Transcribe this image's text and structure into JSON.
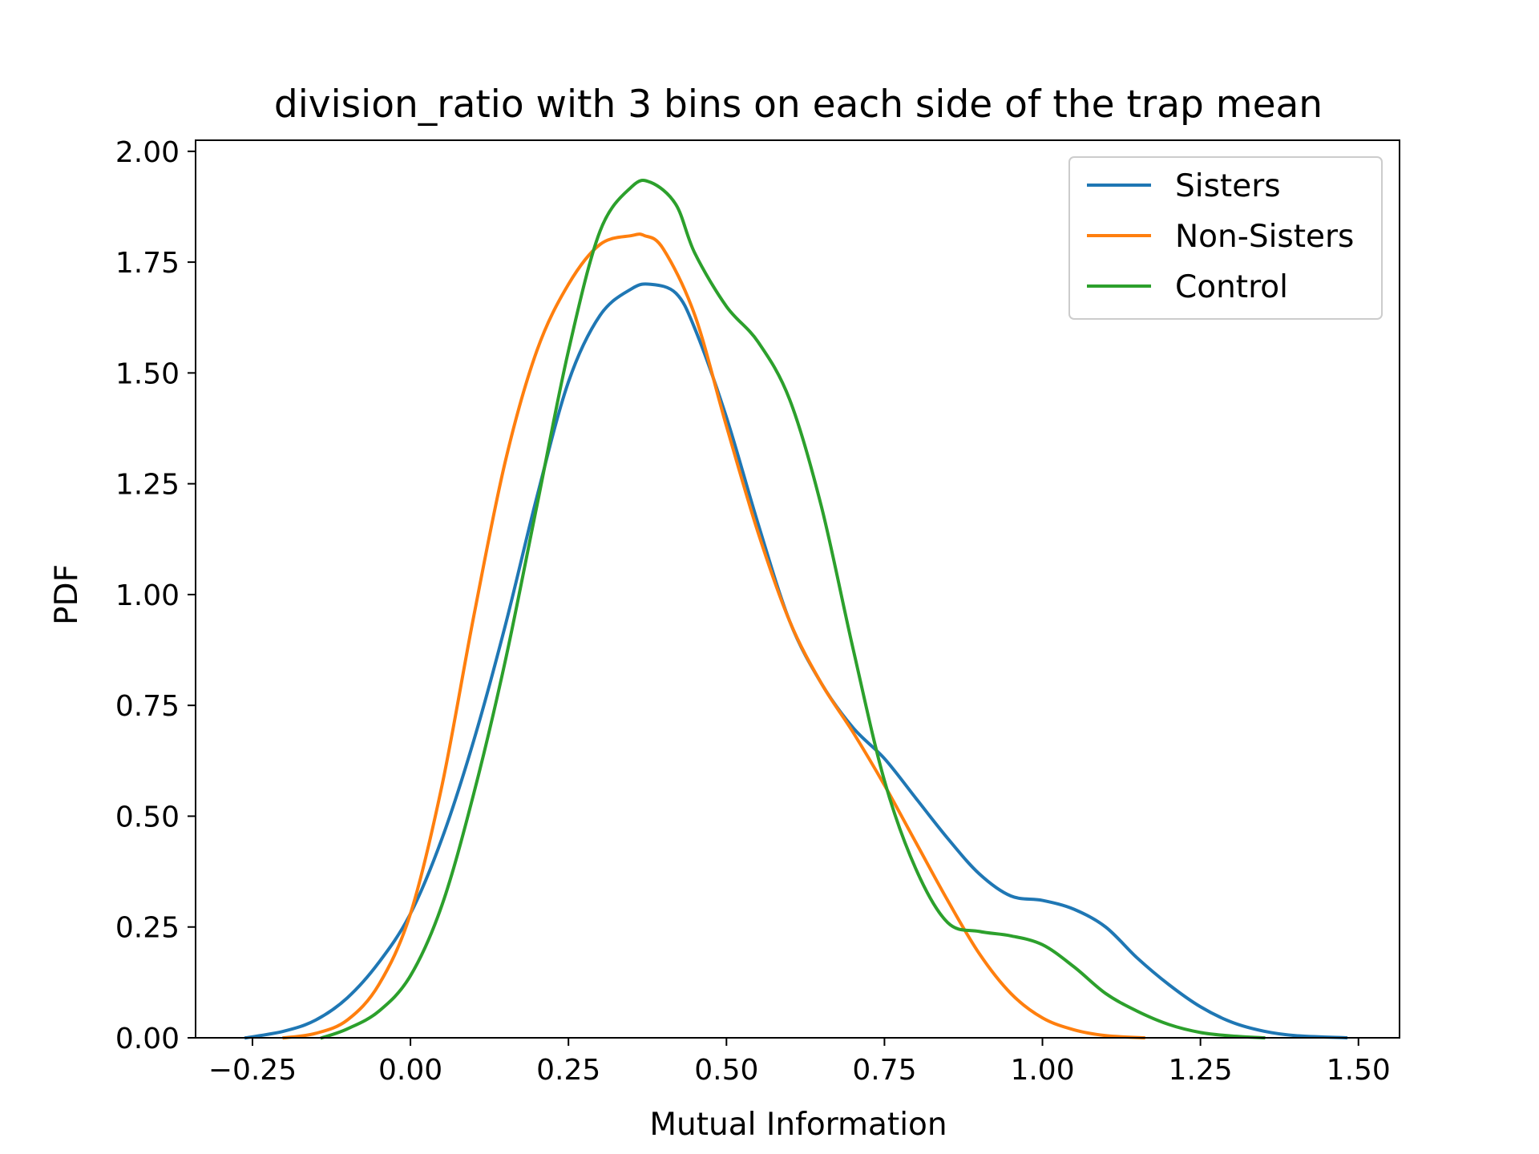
{
  "chart_data": {
    "type": "line",
    "title": "division_ratio with 3 bins on each side of the trap mean",
    "xlabel": "Mutual Information",
    "ylabel": "PDF",
    "xlim": [
      -0.34,
      1.565
    ],
    "ylim": [
      0,
      2.025
    ],
    "xticks": [
      -0.25,
      0.0,
      0.25,
      0.5,
      0.75,
      1.0,
      1.25,
      1.5
    ],
    "xtick_labels": [
      "−0.25",
      "0.00",
      "0.25",
      "0.50",
      "0.75",
      "1.00",
      "1.25",
      "1.50"
    ],
    "yticks": [
      0.0,
      0.25,
      0.5,
      0.75,
      1.0,
      1.25,
      1.5,
      1.75,
      2.0
    ],
    "ytick_labels": [
      "0.00",
      "0.25",
      "0.50",
      "0.75",
      "1.00",
      "1.25",
      "1.50",
      "1.75",
      "2.00"
    ],
    "grid": false,
    "legend_position": "top-right",
    "series": [
      {
        "name": "Sisters",
        "color": "#1f77b4",
        "x": [
          -0.26,
          -0.2,
          -0.15,
          -0.1,
          -0.05,
          0.0,
          0.05,
          0.1,
          0.15,
          0.2,
          0.25,
          0.3,
          0.35,
          0.38,
          0.42,
          0.45,
          0.5,
          0.55,
          0.6,
          0.65,
          0.7,
          0.75,
          0.8,
          0.85,
          0.9,
          0.95,
          1.0,
          1.05,
          1.1,
          1.15,
          1.2,
          1.25,
          1.3,
          1.35,
          1.4,
          1.48
        ],
        "y": [
          0.0,
          0.015,
          0.04,
          0.09,
          0.17,
          0.28,
          0.45,
          0.67,
          0.93,
          1.22,
          1.48,
          1.63,
          1.69,
          1.7,
          1.68,
          1.6,
          1.4,
          1.16,
          0.94,
          0.8,
          0.7,
          0.63,
          0.54,
          0.45,
          0.37,
          0.32,
          0.31,
          0.29,
          0.25,
          0.18,
          0.12,
          0.07,
          0.035,
          0.015,
          0.005,
          0.0
        ]
      },
      {
        "name": "Non-Sisters",
        "color": "#ff7f0e",
        "x": [
          -0.2,
          -0.15,
          -0.1,
          -0.05,
          0.0,
          0.05,
          0.1,
          0.15,
          0.2,
          0.25,
          0.3,
          0.35,
          0.37,
          0.4,
          0.45,
          0.5,
          0.55,
          0.6,
          0.65,
          0.7,
          0.75,
          0.8,
          0.85,
          0.9,
          0.95,
          1.0,
          1.05,
          1.1,
          1.16
        ],
        "y": [
          0.0,
          0.01,
          0.04,
          0.12,
          0.28,
          0.57,
          0.95,
          1.3,
          1.55,
          1.7,
          1.79,
          1.81,
          1.81,
          1.78,
          1.63,
          1.38,
          1.14,
          0.94,
          0.8,
          0.69,
          0.57,
          0.44,
          0.31,
          0.19,
          0.1,
          0.045,
          0.018,
          0.005,
          0.0
        ]
      },
      {
        "name": "Control",
        "color": "#2ca02c",
        "x": [
          -0.14,
          -0.1,
          -0.05,
          0.0,
          0.05,
          0.1,
          0.15,
          0.2,
          0.25,
          0.3,
          0.35,
          0.38,
          0.42,
          0.45,
          0.5,
          0.55,
          0.6,
          0.65,
          0.7,
          0.75,
          0.8,
          0.85,
          0.9,
          0.95,
          1.0,
          1.05,
          1.1,
          1.15,
          1.2,
          1.25,
          1.3,
          1.35
        ],
        "y": [
          0.0,
          0.02,
          0.06,
          0.14,
          0.3,
          0.55,
          0.85,
          1.2,
          1.55,
          1.82,
          1.92,
          1.93,
          1.88,
          1.77,
          1.65,
          1.57,
          1.44,
          1.2,
          0.88,
          0.58,
          0.38,
          0.26,
          0.24,
          0.23,
          0.21,
          0.16,
          0.1,
          0.06,
          0.03,
          0.012,
          0.004,
          0.0
        ]
      }
    ]
  }
}
